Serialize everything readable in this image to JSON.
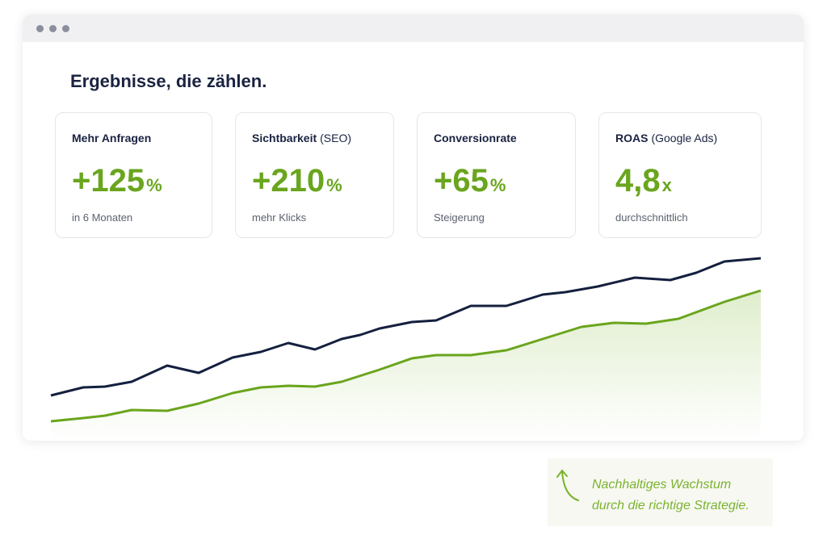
{
  "header": {
    "title": "Ergebnisse, die zählen."
  },
  "cards": [
    {
      "label": "Mehr Anfragen",
      "value": "+125",
      "unit": "%",
      "caption": "in 6 Monaten"
    },
    {
      "label": "Sichtbarkeit",
      "label_note": "(SEO)",
      "value": "+210",
      "unit": "%",
      "caption": "mehr Klicks"
    },
    {
      "label": "Conversionrate",
      "value": "+65",
      "unit": "%",
      "caption": "Steigerung"
    },
    {
      "label": "ROAS",
      "label_note": "(Google Ads)",
      "value": "4,8",
      "unit": "x",
      "caption": "durchschnittlich"
    }
  ],
  "annotation": {
    "lines": [
      "Nachhaltiges Wachstum",
      "durch die richtige Strategie."
    ]
  }
}
